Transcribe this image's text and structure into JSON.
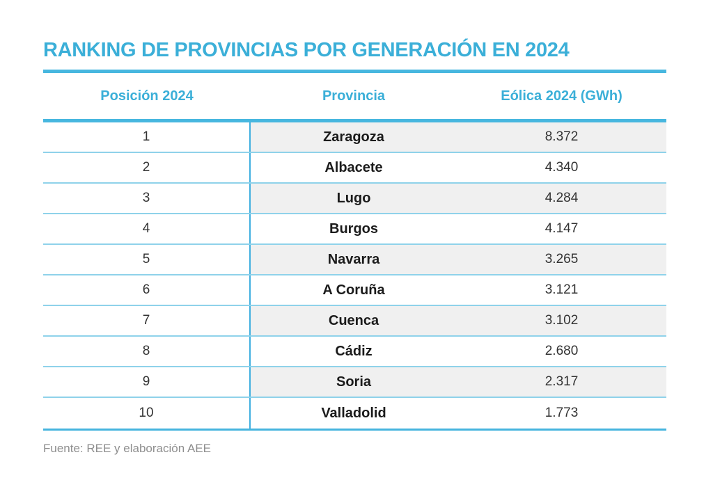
{
  "title": "RANKING DE PROVINCIAS POR GENERACIÓN EN 2024",
  "source_note": "Fuente: REE y elaboración AEE",
  "table": {
    "headers": {
      "position": "Posición 2024",
      "province": "Provincia",
      "generation": "Eólica 2024 (GWh)"
    },
    "rows": [
      {
        "position": "1",
        "province": "Zaragoza",
        "value": "8.372"
      },
      {
        "position": "2",
        "province": "Albacete",
        "value": "4.340"
      },
      {
        "position": "3",
        "province": "Lugo",
        "value": "4.284"
      },
      {
        "position": "4",
        "province": "Burgos",
        "value": "4.147"
      },
      {
        "position": "5",
        "province": "Navarra",
        "value": "3.265"
      },
      {
        "position": "6",
        "province": "A Coruña",
        "value": "3.121"
      },
      {
        "position": "7",
        "province": "Cuenca",
        "value": "3.102"
      },
      {
        "position": "8",
        "province": "Cádiz",
        "value": "2.680"
      },
      {
        "position": "9",
        "province": "Soria",
        "value": "2.317"
      },
      {
        "position": "10",
        "province": "Valladolid",
        "value": "1.773"
      }
    ]
  },
  "chart_data": {
    "type": "table",
    "title": "RANKING DE PROVINCIAS POR GENERACIÓN EN 2024",
    "columns": [
      "Posición 2024",
      "Provincia",
      "Eólica 2024 (GWh)"
    ],
    "rows": [
      [
        "1",
        "Zaragoza",
        "8.372"
      ],
      [
        "2",
        "Albacete",
        "4.340"
      ],
      [
        "3",
        "Lugo",
        "4.284"
      ],
      [
        "4",
        "Burgos",
        "4.147"
      ],
      [
        "5",
        "Navarra",
        "3.265"
      ],
      [
        "6",
        "A Coruña",
        "3.121"
      ],
      [
        "7",
        "Cuenca",
        "3.102"
      ],
      [
        "8",
        "Cádiz",
        "2.680"
      ],
      [
        "9",
        "Soria",
        "2.317"
      ],
      [
        "10",
        "Valladolid",
        "1.773"
      ]
    ],
    "values_gwh": [
      8372,
      4340,
      4284,
      4147,
      3265,
      3121,
      3102,
      2680,
      2317,
      1773
    ],
    "source": "Fuente: REE y elaboración AEE"
  },
  "colors": {
    "accent": "#3bafd8",
    "rule": "#47b7df",
    "rule-strong": "#45b4de",
    "separator": "#8fd2ea",
    "divider": "#3fafe0",
    "row-shade": "#f0f0f0",
    "text-dark": "#1b1b1b",
    "text-num": "#333333",
    "text-muted": "#8e8e8e",
    "page-bg": "#ffffff"
  }
}
